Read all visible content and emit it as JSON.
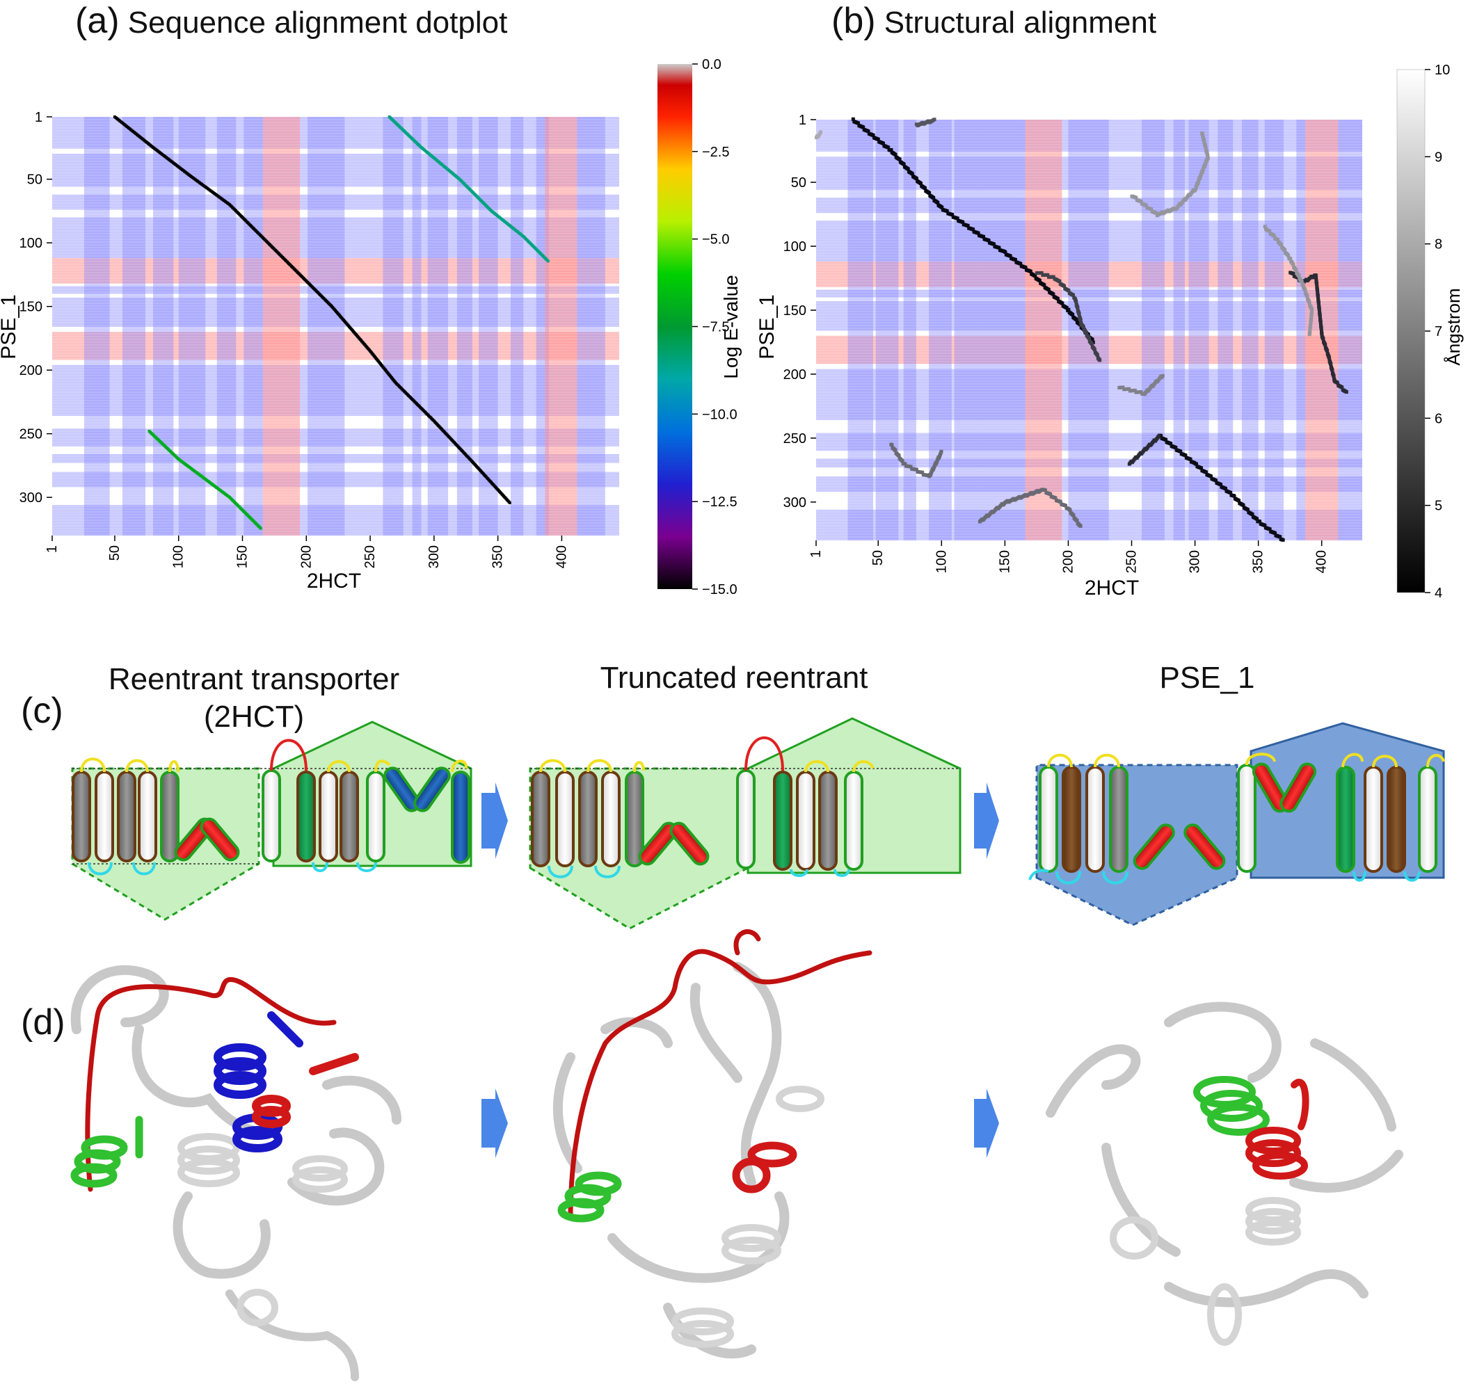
{
  "panels": {
    "a": {
      "letter": "(a)",
      "title": "Sequence alignment dotplot"
    },
    "b": {
      "letter": "(b)",
      "title": "Structural alignment"
    },
    "c": {
      "letter": "(c)"
    },
    "d": {
      "letter": "(d)"
    }
  },
  "stages": [
    {
      "title_line1": "Reentrant transporter",
      "title_line2": "(2HCT)"
    },
    {
      "title_line1": "Truncated reentrant",
      "title_line2": ""
    },
    {
      "title_line1": "PSE_1",
      "title_line2": ""
    }
  ],
  "colors": {
    "tm_band": "#8080ff",
    "reentrant_band": "#ff8c8c",
    "green_repeat": "#c8f0c0",
    "blue_repeat": "#7aa2d8",
    "arrow": "#4a86e8",
    "helix_brown": "#7a4a1e",
    "helix_gray": "#808080",
    "helix_white": "#f2f2f2",
    "helix_red": "#e02020",
    "helix_green": "#18a050",
    "helix_blue": "#1a5fb4",
    "loop_yellow": "#f0e020",
    "loop_cyan": "#30d8e8"
  },
  "chart_data": [
    {
      "type": "heatmap",
      "title": "Sequence alignment dotplot",
      "xlabel": "2HCT",
      "ylabel": "PSE_1",
      "xlim": [
        1,
        445
      ],
      "ylim": [
        1,
        330
      ],
      "xticks": [
        "1",
        "50",
        "100",
        "150",
        "200",
        "250",
        "300",
        "350",
        "400"
      ],
      "yticks": [
        "1",
        "50",
        "100",
        "150",
        "200",
        "250",
        "300"
      ],
      "colorbar": {
        "label": "Log E-value",
        "min": -15.0,
        "max": 0.0,
        "ticks": [
          "0.0",
          "−2.5",
          "−5.0",
          "−7.5",
          "−10.0",
          "−12.5",
          "−15.0"
        ],
        "colormap": "nipy_spectral"
      },
      "x_tm_bands": [
        [
          26,
          46
        ],
        [
          56,
          74
        ],
        [
          80,
          96
        ],
        [
          100,
          121
        ],
        [
          130,
          145
        ],
        [
          151,
          166
        ],
        [
          201,
          230
        ],
        [
          260,
          276
        ],
        [
          283,
          290
        ],
        [
          295,
          311
        ],
        [
          318,
          330
        ],
        [
          335,
          350
        ],
        [
          360,
          370
        ],
        [
          380,
          390
        ],
        [
          412,
          434
        ]
      ],
      "x_reentrant_bands": [
        [
          166,
          195
        ],
        [
          387,
          412
        ]
      ],
      "y_tm_bands": [
        [
          1,
          26
        ],
        [
          30,
          56
        ],
        [
          62,
          74
        ],
        [
          80,
          112
        ],
        [
          134,
          140
        ],
        [
          143,
          166
        ],
        [
          196,
          236
        ],
        [
          246,
          260
        ],
        [
          266,
          273
        ],
        [
          280,
          292
        ],
        [
          306,
          330
        ]
      ],
      "y_reentrant_bands": [
        [
          112,
          132
        ],
        [
          170,
          192
        ]
      ],
      "series": [
        {
          "name": "",
          "logE": -15.0,
          "points": [
            [
              50,
              1
            ],
            [
              80,
              25
            ],
            [
              110,
              48
            ],
            [
              140,
              70
            ],
            [
              180,
              110
            ],
            [
              220,
              150
            ],
            [
              250,
              185
            ],
            [
              270,
              210
            ],
            [
              300,
              240
            ],
            [
              330,
              272
            ],
            [
              360,
              305
            ]
          ]
        },
        {
          "name": "",
          "logE": -8.5,
          "points": [
            [
              265,
              1
            ],
            [
              290,
              25
            ],
            [
              320,
              50
            ],
            [
              345,
              75
            ],
            [
              370,
              95
            ],
            [
              390,
              115
            ]
          ]
        },
        {
          "name": "",
          "logE": -7.0,
          "points": [
            [
              77,
              248
            ],
            [
              100,
              270
            ],
            [
              120,
              285
            ],
            [
              140,
              300
            ],
            [
              165,
              325
            ]
          ]
        }
      ]
    },
    {
      "type": "heatmap",
      "title": "Structural alignment",
      "xlabel": "2HCT",
      "ylabel": "PSE_1",
      "xlim": [
        1,
        432
      ],
      "ylim": [
        1,
        330
      ],
      "xticks": [
        "1",
        "50",
        "100",
        "150",
        "200",
        "250",
        "300",
        "350",
        "400"
      ],
      "yticks": [
        "1",
        "50",
        "100",
        "150",
        "200",
        "250",
        "300"
      ],
      "colorbar": {
        "label": "Ångstrom",
        "min": 4,
        "max": 10,
        "ticks": [
          "10",
          "9",
          "8",
          "7",
          "6",
          "5",
          "4"
        ],
        "colormap": "gray"
      },
      "x_tm_bands": [
        [
          26,
          46
        ],
        [
          48,
          66
        ],
        [
          70,
          80
        ],
        [
          90,
          108
        ],
        [
          110,
          130
        ],
        [
          130,
          166
        ],
        [
          200,
          232
        ],
        [
          258,
          276
        ],
        [
          283,
          292
        ],
        [
          295,
          311
        ],
        [
          318,
          330
        ],
        [
          337,
          350
        ],
        [
          355,
          370
        ],
        [
          380,
          387
        ],
        [
          413,
          432
        ]
      ],
      "x_reentrant_bands": [
        [
          166,
          195
        ],
        [
          387,
          413
        ]
      ],
      "y_tm_bands": [
        [
          1,
          26
        ],
        [
          30,
          56
        ],
        [
          62,
          74
        ],
        [
          80,
          112
        ],
        [
          134,
          140
        ],
        [
          143,
          166
        ],
        [
          196,
          236
        ],
        [
          246,
          260
        ],
        [
          266,
          273
        ],
        [
          280,
          292
        ],
        [
          306,
          330
        ]
      ],
      "y_reentrant_bands": [
        [
          112,
          132
        ],
        [
          170,
          192
        ]
      ],
      "series": [
        {
          "name": "",
          "dist": 4.2,
          "points": [
            [
              30,
              1
            ],
            [
              60,
              25
            ],
            [
              100,
              70
            ],
            [
              150,
              105
            ],
            [
              170,
              120
            ],
            [
              200,
              150
            ],
            [
              220,
              175
            ]
          ]
        },
        {
          "name": "",
          "dist": 4.3,
          "points": [
            [
              272,
              248
            ],
            [
              300,
              270
            ],
            [
              330,
              295
            ],
            [
              350,
              315
            ],
            [
              370,
              330
            ]
          ]
        },
        {
          "name": "",
          "dist": 5.0,
          "points": [
            [
              248,
              270
            ],
            [
              272,
              248
            ]
          ]
        },
        {
          "name": "",
          "dist": 5.0,
          "points": [
            [
              375,
              120
            ],
            [
              385,
              128
            ],
            [
              395,
              122
            ],
            [
              400,
              170
            ],
            [
              405,
              185
            ],
            [
              410,
              205
            ],
            [
              420,
              215
            ]
          ]
        },
        {
          "name": "",
          "dist": 5.5,
          "points": [
            [
              175,
              120
            ],
            [
              190,
              125
            ],
            [
              205,
              140
            ],
            [
              210,
              160
            ],
            [
              225,
              190
            ]
          ]
        },
        {
          "name": "",
          "dist": 6.0,
          "points": [
            [
              80,
              5
            ],
            [
              95,
              1
            ]
          ]
        },
        {
          "name": "",
          "dist": 6.5,
          "points": [
            [
              60,
              255
            ],
            [
              70,
              270
            ],
            [
              90,
              280
            ],
            [
              100,
              260
            ]
          ]
        },
        {
          "name": "",
          "dist": 6.5,
          "points": [
            [
              130,
              315
            ],
            [
              150,
              300
            ],
            [
              180,
              290
            ],
            [
              200,
              305
            ],
            [
              210,
              320
            ]
          ]
        },
        {
          "name": "",
          "dist": 7.0,
          "points": [
            [
              240,
              210
            ],
            [
              260,
              215
            ],
            [
              275,
              200
            ]
          ]
        },
        {
          "name": "",
          "dist": 7.5,
          "points": [
            [
              250,
              60
            ],
            [
              270,
              75
            ],
            [
              285,
              70
            ],
            [
              300,
              55
            ],
            [
              310,
              30
            ],
            [
              305,
              10
            ]
          ]
        },
        {
          "name": "",
          "dist": 7.5,
          "points": [
            [
              355,
              85
            ],
            [
              365,
              95
            ],
            [
              375,
              110
            ],
            [
              385,
              130
            ],
            [
              392,
              150
            ],
            [
              390,
              170
            ]
          ]
        },
        {
          "name": "",
          "dist": 8.0,
          "points": [
            [
              1,
              15
            ],
            [
              5,
              10
            ]
          ]
        }
      ]
    }
  ]
}
